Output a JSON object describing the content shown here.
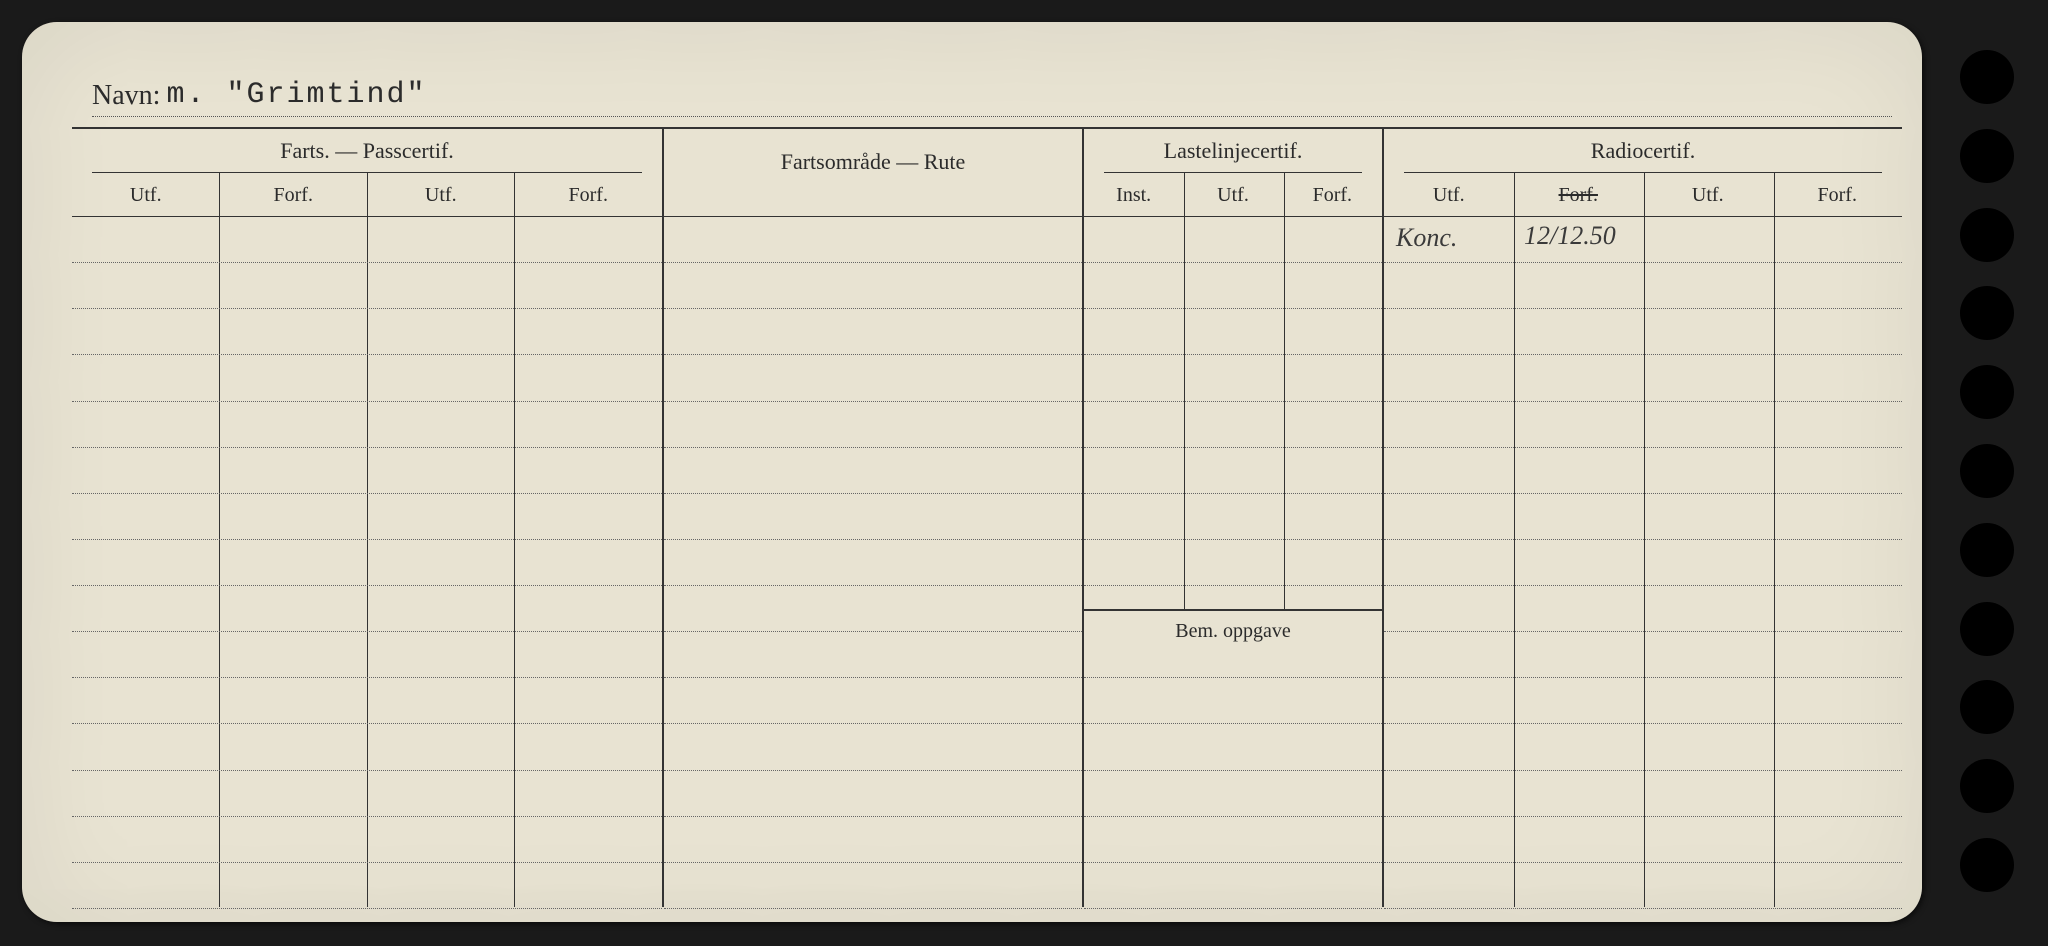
{
  "navn": {
    "label": "Navn:",
    "value": "m. \"Grimtind\""
  },
  "sections": {
    "farts": {
      "title": "Farts. — Passcertif.",
      "cols": [
        "Utf.",
        "Forf.",
        "Utf.",
        "Forf."
      ]
    },
    "rute": {
      "title": "Fartsområde — Rute"
    },
    "laste": {
      "title": "Lastelinjecertif.",
      "cols": [
        "Inst.",
        "Utf.",
        "Forf."
      ],
      "bem": "Bem. oppgave"
    },
    "radio": {
      "title": "Radiocertif.",
      "cols": [
        "Utf.",
        "Forf.",
        "Utf.",
        "Forf."
      ],
      "strike_col_index": 1
    }
  },
  "handwritten": {
    "radio_row1_col1": "Konc.",
    "radio_row1_col2": "12/12.50"
  },
  "row_count": 15,
  "laste_rows_before_split": 9,
  "colors": {
    "card_bg": "#e8e3d2",
    "ink": "#2b2b2b",
    "rule": "#333333",
    "dotted": "#666666",
    "page_bg": "#1a1a1a"
  },
  "holes": 11
}
